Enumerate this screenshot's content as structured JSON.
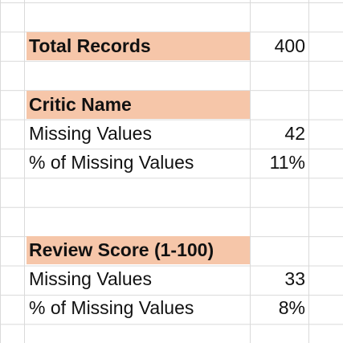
{
  "colors": {
    "header_fill": "#f6c6a9",
    "gridline": "#dadada",
    "text": "#111111"
  },
  "total": {
    "label": "Total Records",
    "value": "400"
  },
  "critic": {
    "title": "Critic Name",
    "missing_label": "Missing Values",
    "missing_value": "42",
    "pct_label": "% of Missing Values",
    "pct_value": "11%"
  },
  "review": {
    "title": "Review Score (1-100)",
    "missing_label": "Missing Values",
    "missing_value": "33",
    "pct_label": "% of Missing Values",
    "pct_value": "8%"
  }
}
